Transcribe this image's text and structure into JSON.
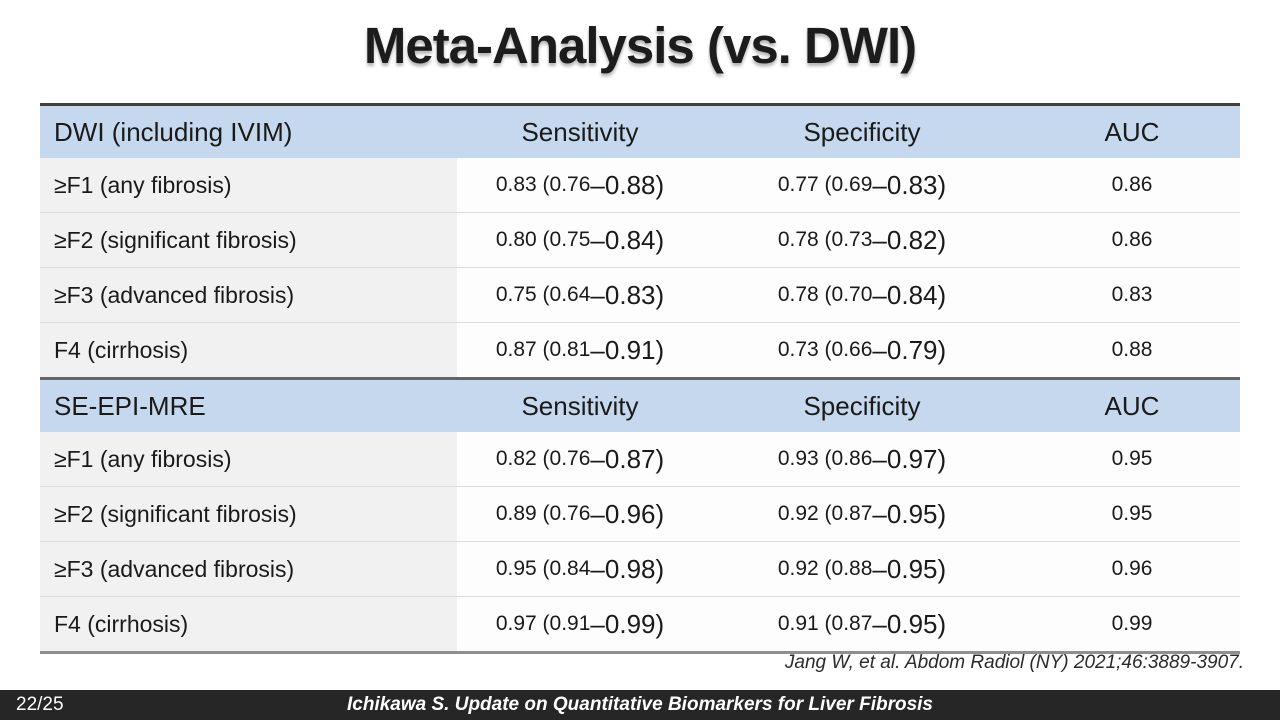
{
  "slide": {
    "title": "Meta-Analysis (vs. DWI)",
    "citation": "Jang W, et al. Abdom Radiol (NY) 2021;46:3889-3907.",
    "footer": {
      "page": "22/25",
      "text": "Ichikawa S. Update on Quantitative Biomarkers for Liver Fibrosis"
    }
  },
  "colors": {
    "header_row_bg": "#c6d8ee",
    "label_column_bg": "#f1f1f1",
    "table_top_border": "#3f3f3f",
    "table_mid_border": "#5d6570",
    "table_bottom_border": "#8f8f8f",
    "footer_bar_bg": "#262626",
    "footer_text": "#ffffff"
  },
  "table": {
    "sections": [
      {
        "header": {
          "col1": "DWI (including IVIM)",
          "col2": "Sensitivity",
          "col3": "Specificity",
          "col4": "AUC"
        },
        "rows": [
          {
            "label": "≥F1 (any fibrosis)",
            "sens_a": "0.83 (0.76",
            "sens_b": "–0.88)",
            "spec_a": "0.77 (0.69",
            "spec_b": "–0.83)",
            "auc": "0.86"
          },
          {
            "label": "≥F2 (significant fibrosis)",
            "sens_a": "0.80 (0.75",
            "sens_b": "–0.84)",
            "spec_a": "0.78 (0.73",
            "spec_b": "–0.82)",
            "auc": "0.86"
          },
          {
            "label": "≥F3 (advanced fibrosis)",
            "sens_a": "0.75 (0.64",
            "sens_b": "–0.83)",
            "spec_a": "0.78 (0.70",
            "spec_b": "–0.84)",
            "auc": "0.83"
          },
          {
            "label": "F4 (cirrhosis)",
            "sens_a": "0.87 (0.81",
            "sens_b": "–0.91)",
            "spec_a": "0.73 (0.66",
            "spec_b": "–0.79)",
            "auc": "0.88"
          }
        ]
      },
      {
        "header": {
          "col1": "SE-EPI-MRE",
          "col2": "Sensitivity",
          "col3": "Specificity",
          "col4": "AUC"
        },
        "rows": [
          {
            "label": "≥F1 (any fibrosis)",
            "sens_a": "0.82 (0.76",
            "sens_b": "–0.87)",
            "spec_a": "0.93 (0.86",
            "spec_b": "–0.97)",
            "auc": "0.95"
          },
          {
            "label": "≥F2 (significant fibrosis)",
            "sens_a": "0.89 (0.76",
            "sens_b": "–0.96)",
            "spec_a": "0.92 (0.87",
            "spec_b": "–0.95)",
            "auc": "0.95"
          },
          {
            "label": "≥F3 (advanced fibrosis)",
            "sens_a": "0.95 (0.84",
            "sens_b": "–0.98)",
            "spec_a": "0.92 (0.88",
            "spec_b": "–0.95)",
            "auc": "0.96"
          },
          {
            "label": "F4 (cirrhosis)",
            "sens_a": "0.97 (0.91",
            "sens_b": "–0.99)",
            "spec_a": "0.91 (0.87",
            "spec_b": "–0.95)",
            "auc": "0.99"
          }
        ]
      }
    ]
  }
}
